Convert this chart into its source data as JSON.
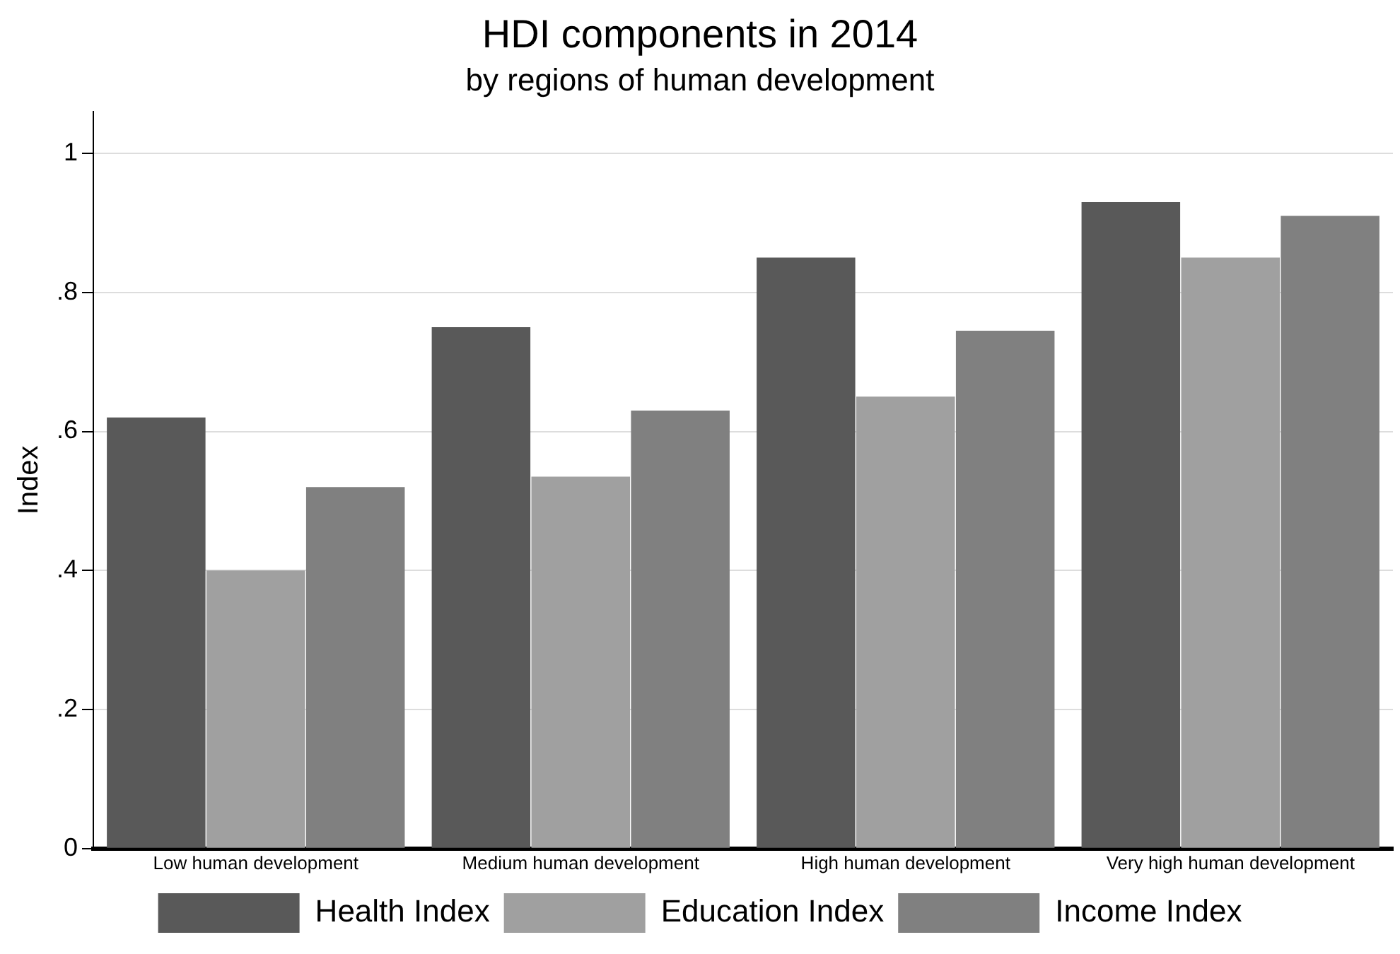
{
  "chart_data": {
    "type": "bar",
    "title": "HDI components in 2014",
    "subtitle": "by regions of human development",
    "ylabel": "Index",
    "categories": [
      "Low human development",
      "Medium human development",
      "High human development",
      "Very high human development"
    ],
    "series": [
      {
        "name": "Health Index",
        "color": "#595959",
        "values": [
          0.62,
          0.75,
          0.85,
          0.93
        ]
      },
      {
        "name": "Education Index",
        "color": "#a0a0a0",
        "values": [
          0.4,
          0.535,
          0.65,
          0.85
        ]
      },
      {
        "name": "Income Index",
        "color": "#808080",
        "values": [
          0.52,
          0.63,
          0.745,
          0.91
        ]
      }
    ],
    "ylim": [
      0,
      1.06
    ],
    "yticks": [
      0,
      {
        "value": 0.2,
        "label": ".2"
      },
      {
        "value": 0.4,
        "label": ".4"
      },
      {
        "value": 0.6,
        "label": ".6"
      },
      {
        "value": 0.8,
        "label": ".8"
      },
      1
    ],
    "grid": "y",
    "legend": "bottom"
  }
}
